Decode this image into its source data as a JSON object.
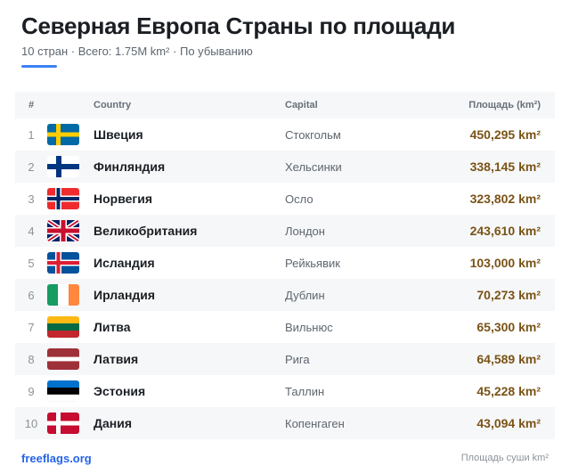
{
  "header": {
    "title": "Северная Европа Страны по площади",
    "subtitle": "10 стран · Всего: 1.75M km² · По убыванию"
  },
  "table": {
    "columns": {
      "num": "#",
      "country": "Country",
      "capital": "Capital",
      "area": "Площадь (km²)"
    },
    "rows": [
      {
        "rank": "1",
        "flag": "sweden-flag-icon",
        "country": "Швеция",
        "capital": "Стокгольм",
        "area": "450,295 km²"
      },
      {
        "rank": "2",
        "flag": "finland-flag-icon",
        "country": "Финляндия",
        "capital": "Хельсинки",
        "area": "338,145 km²"
      },
      {
        "rank": "3",
        "flag": "norway-flag-icon",
        "country": "Норвегия",
        "capital": "Осло",
        "area": "323,802 km²"
      },
      {
        "rank": "4",
        "flag": "uk-flag-icon",
        "country": "Великобритания",
        "capital": "Лондон",
        "area": "243,610 km²"
      },
      {
        "rank": "5",
        "flag": "iceland-flag-icon",
        "country": "Исландия",
        "capital": "Рейкьявик",
        "area": "103,000 km²"
      },
      {
        "rank": "6",
        "flag": "ireland-flag-icon",
        "country": "Ирландия",
        "capital": "Дублин",
        "area": "70,273 km²"
      },
      {
        "rank": "7",
        "flag": "lithuania-flag-icon",
        "country": "Литва",
        "capital": "Вильнюс",
        "area": "65,300 km²"
      },
      {
        "rank": "8",
        "flag": "latvia-flag-icon",
        "country": "Латвия",
        "capital": "Рига",
        "area": "64,589 km²"
      },
      {
        "rank": "9",
        "flag": "estonia-flag-icon",
        "country": "Эстония",
        "capital": "Таллин",
        "area": "45,228 km²"
      },
      {
        "rank": "10",
        "flag": "denmark-flag-icon",
        "country": "Дания",
        "capital": "Копенгаген",
        "area": "43,094 km²"
      }
    ]
  },
  "footer": {
    "brand": "freeflags.org",
    "note": "Площадь суши km²"
  },
  "colors": {
    "accent": "#3b82f6",
    "area_text": "#7a5316",
    "brand": "#2563eb"
  }
}
